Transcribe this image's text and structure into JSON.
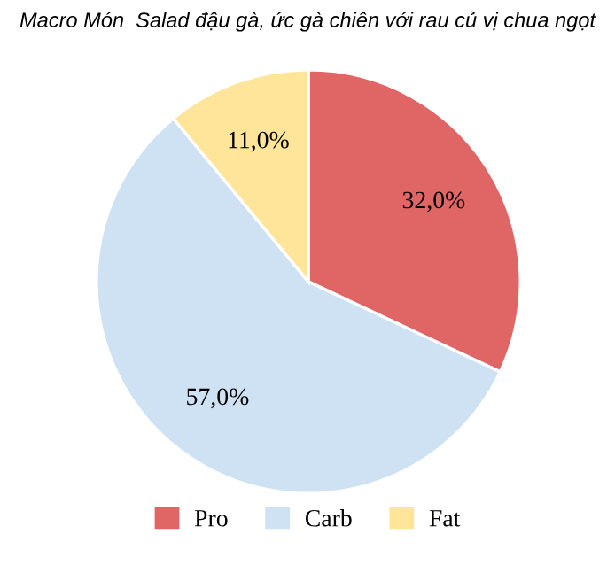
{
  "chart_data": {
    "type": "pie",
    "title": "Macro Món  Salad đậu gà, ức gà chiên với rau củ vị chua ngọt",
    "categories": [
      "Pro",
      "Carb",
      "Fat"
    ],
    "values": [
      32,
      57,
      11
    ],
    "value_labels": [
      "32,0%",
      "57,0%",
      "11,0%"
    ],
    "colors": [
      "#e06666",
      "#cfe2f3",
      "#ffe599"
    ],
    "legend": "bottom"
  }
}
